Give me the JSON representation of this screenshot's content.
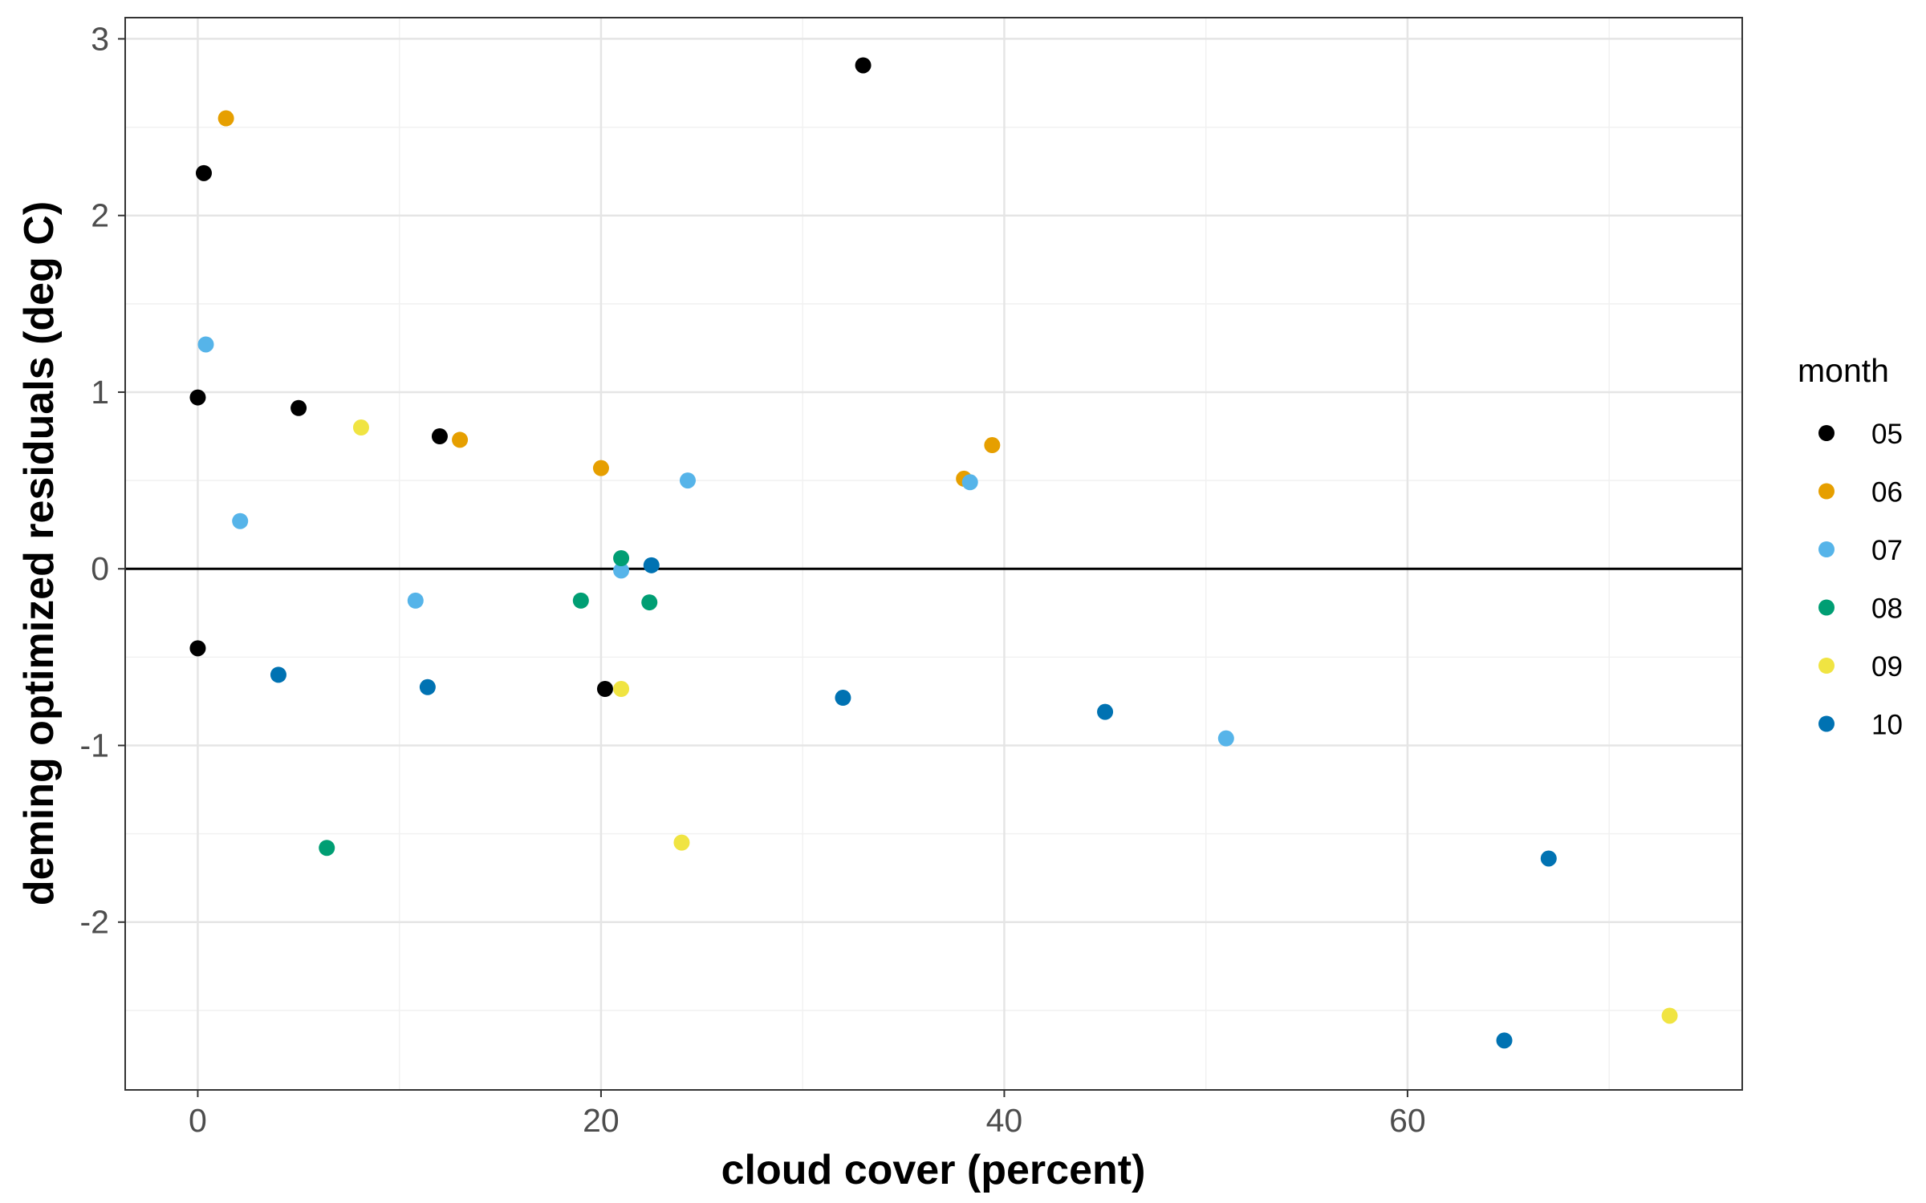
{
  "chart_data": {
    "type": "scatter",
    "title": "",
    "xlabel": "cloud cover (percent)",
    "ylabel": "deming optimized residuals (deg C)",
    "xlim": [
      -3.6,
      76.6
    ],
    "ylim": [
      -2.95,
      3.12
    ],
    "x_ticks": [
      0,
      20,
      40,
      60
    ],
    "x_tick_labels": [
      "0",
      "20",
      "40",
      "60"
    ],
    "y_ticks": [
      -2,
      -1,
      0,
      1,
      2,
      3
    ],
    "y_tick_labels": [
      "-2",
      "-1",
      "0",
      "1",
      "2",
      "3"
    ],
    "x_minor_gridlines": [
      10,
      30,
      50,
      70
    ],
    "y_minor_gridlines": [
      -2.5,
      -1.5,
      -0.5,
      0.5,
      1.5,
      2.5
    ],
    "reference_line_y": 0,
    "grid": true,
    "legend": {
      "title": "month",
      "position": "right"
    },
    "series": [
      {
        "name": "05",
        "color": "#000000",
        "points": [
          [
            0.3,
            2.24
          ],
          [
            0,
            0.97
          ],
          [
            5,
            0.91
          ],
          [
            12,
            0.75
          ],
          [
            33,
            2.85
          ],
          [
            0,
            -0.45
          ],
          [
            20.2,
            -0.68
          ]
        ]
      },
      {
        "name": "06",
        "color": "#E69F00",
        "points": [
          [
            1.4,
            2.55
          ],
          [
            13,
            0.73
          ],
          [
            20,
            0.57
          ],
          [
            38,
            0.51
          ],
          [
            39.4,
            0.7
          ]
        ]
      },
      {
        "name": "07",
        "color": "#56B4E9",
        "points": [
          [
            0.4,
            1.27
          ],
          [
            2.1,
            0.27
          ],
          [
            10.8,
            -0.18
          ],
          [
            21,
            -0.01
          ],
          [
            24.3,
            0.5
          ],
          [
            38.3,
            0.49
          ],
          [
            51,
            -0.96
          ]
        ]
      },
      {
        "name": "08",
        "color": "#009E73",
        "points": [
          [
            21,
            0.06
          ],
          [
            19,
            -0.18
          ],
          [
            22.4,
            -0.19
          ],
          [
            6.4,
            -1.58
          ]
        ]
      },
      {
        "name": "09",
        "color": "#F0E442",
        "points": [
          [
            8.1,
            0.8
          ],
          [
            21,
            -0.68
          ],
          [
            24,
            -1.55
          ],
          [
            73,
            -2.53
          ]
        ]
      },
      {
        "name": "10",
        "color": "#0072B2",
        "points": [
          [
            22.5,
            0.02
          ],
          [
            4,
            -0.6
          ],
          [
            11.4,
            -0.67
          ],
          [
            32,
            -0.73
          ],
          [
            45,
            -0.81
          ],
          [
            67,
            -1.64
          ],
          [
            64.8,
            -2.67
          ]
        ]
      }
    ]
  }
}
